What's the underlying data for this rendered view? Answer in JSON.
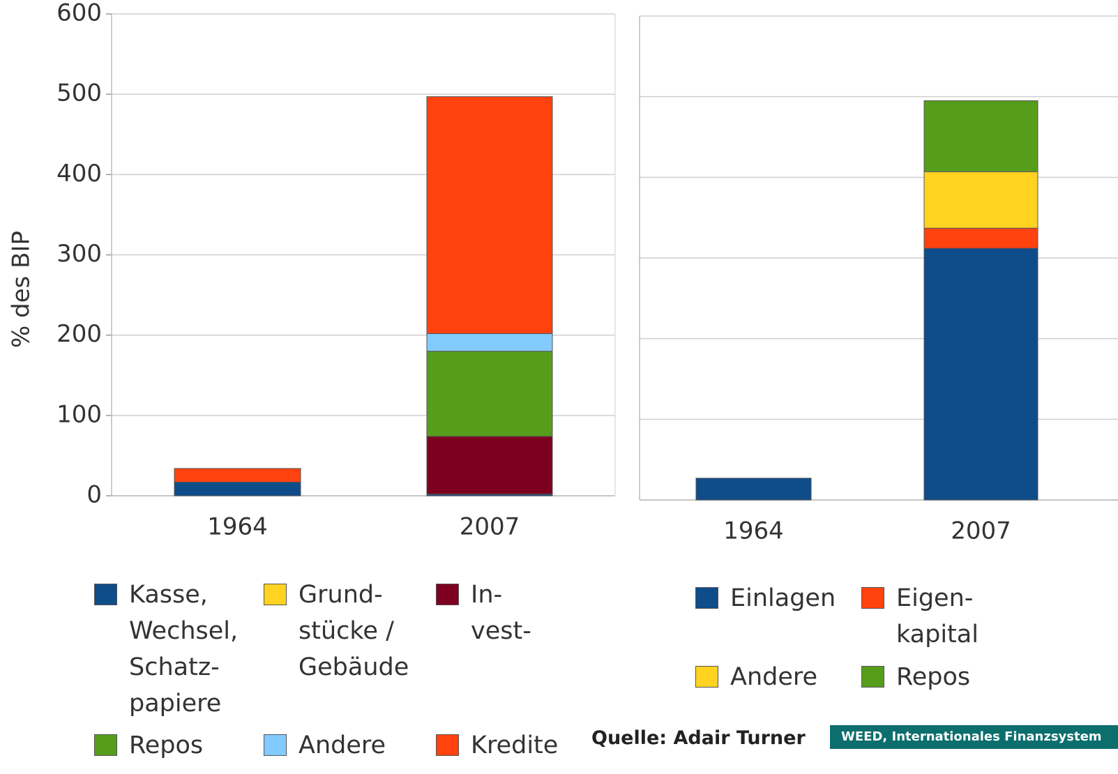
{
  "chart_data": [
    {
      "type": "bar",
      "stacked": true,
      "y_label": "% des BIP",
      "categories": [
        "1964",
        "2007"
      ],
      "ylim": [
        0,
        600
      ],
      "yticks": [
        0,
        100,
        200,
        300,
        400,
        500,
        600
      ],
      "grid": true,
      "tick_labels": true,
      "series": [
        {
          "name": "Kasse,\nWechsel,\nSchatz-\npapiere",
          "color": "#0f4c8a",
          "values": [
            17,
            2
          ]
        },
        {
          "name": "Grund-\nstücke /\nGebäude",
          "color": "#ffd320",
          "values": [
            0,
            0
          ]
        },
        {
          "name": "In-\nvest-",
          "color": "#7e0021",
          "values": [
            0,
            72
          ]
        },
        {
          "name": "Repos",
          "color": "#579d1c",
          "values": [
            0,
            106
          ]
        },
        {
          "name": "Andere",
          "color": "#83caff",
          "values": [
            0,
            22
          ]
        },
        {
          "name": "Kredite",
          "color": "#ff420e",
          "values": [
            17,
            295
          ]
        }
      ]
    },
    {
      "type": "bar",
      "stacked": true,
      "categories": [
        "1964",
        "2007"
      ],
      "ylim": [
        0,
        600
      ],
      "yticks": [
        0,
        100,
        200,
        300,
        400,
        500,
        600
      ],
      "grid": true,
      "tick_labels": false,
      "series": [
        {
          "name": "Einlagen",
          "color": "#0f4c8a",
          "values": [
            27,
            312
          ]
        },
        {
          "name": "Eigen-\nkapital",
          "color": "#ff420e",
          "values": [
            0,
            25
          ]
        },
        {
          "name": "Andere",
          "color": "#ffd320",
          "values": [
            0,
            70
          ]
        },
        {
          "name": "Repos",
          "color": "#579d1c",
          "values": [
            0,
            88
          ]
        }
      ]
    }
  ],
  "footer": {
    "source": "Quelle: Adair Turner",
    "brand": "WEED, Internationales Finanzsystem"
  }
}
